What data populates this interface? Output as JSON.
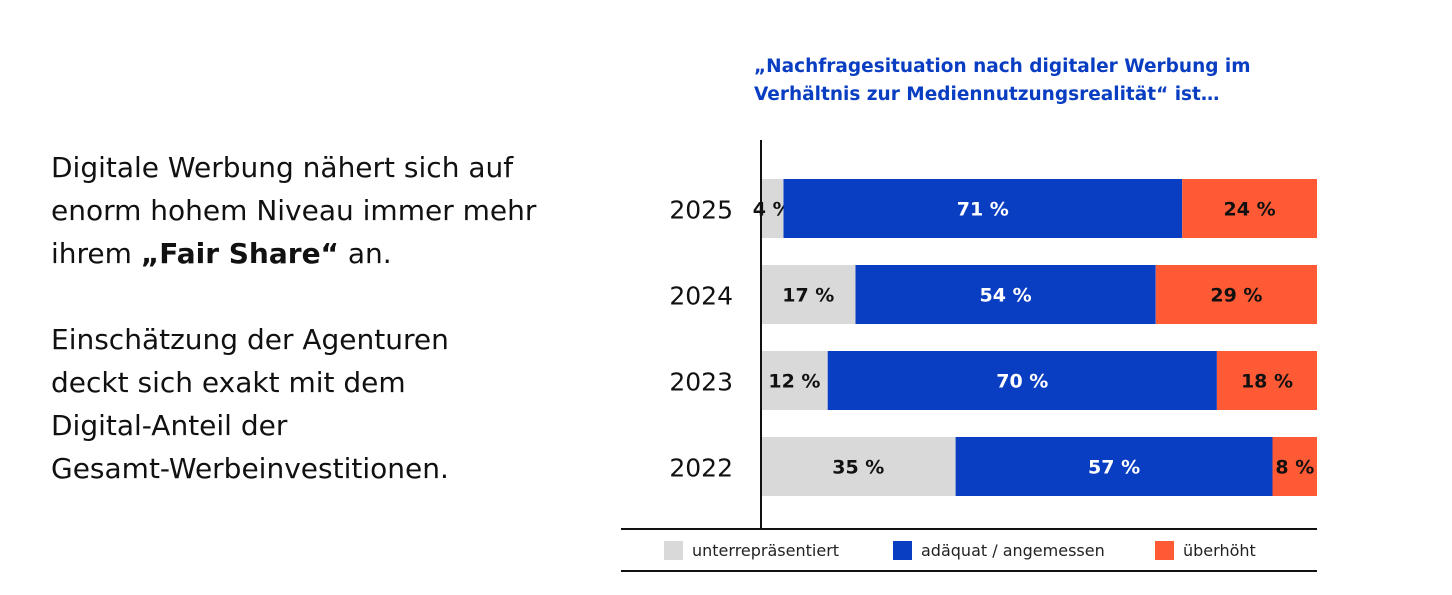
{
  "left_text": {
    "p1_line1": "Digitale Werbung nähert sich auf",
    "p1_line2": "enorm hohem Niveau immer mehr",
    "p1_line3_pre": "ihrem ",
    "p1_line3_em": "„Fair Share“",
    "p1_line3_post": " an.",
    "p2_line1": "Einschätzung der Agenturen",
    "p2_line2": "deckt sich exakt mit dem",
    "p2_line3": "Digital-Anteil der",
    "p2_line4": "Gesamt-Werbeinvestitionen."
  },
  "chart_data": {
    "type": "bar",
    "orientation": "horizontal",
    "stacked": true,
    "title_line1": "„Nachfragesituation nach digitaler Werbung im",
    "title_line2": "Verhältnis zur Mediennutzungsrealität“ ist…",
    "categories": [
      "2025",
      "2024",
      "2023",
      "2022"
    ],
    "series": [
      {
        "name": "unterrepräsentiert",
        "color": "#d9d9d9",
        "label_color": "#111111",
        "values": [
          4,
          17,
          12,
          35
        ]
      },
      {
        "name": "adäquat / angemessen",
        "color": "#0a3ec2",
        "label_color": "#ffffff",
        "values": [
          71,
          54,
          70,
          57
        ]
      },
      {
        "name": "überhöht",
        "color": "#fe5a35",
        "label_color": "#111111",
        "values": [
          24,
          29,
          18,
          8
        ]
      }
    ],
    "value_suffix": " %",
    "xlim": [
      0,
      100
    ],
    "grid": false,
    "legend_position": "bottom"
  }
}
